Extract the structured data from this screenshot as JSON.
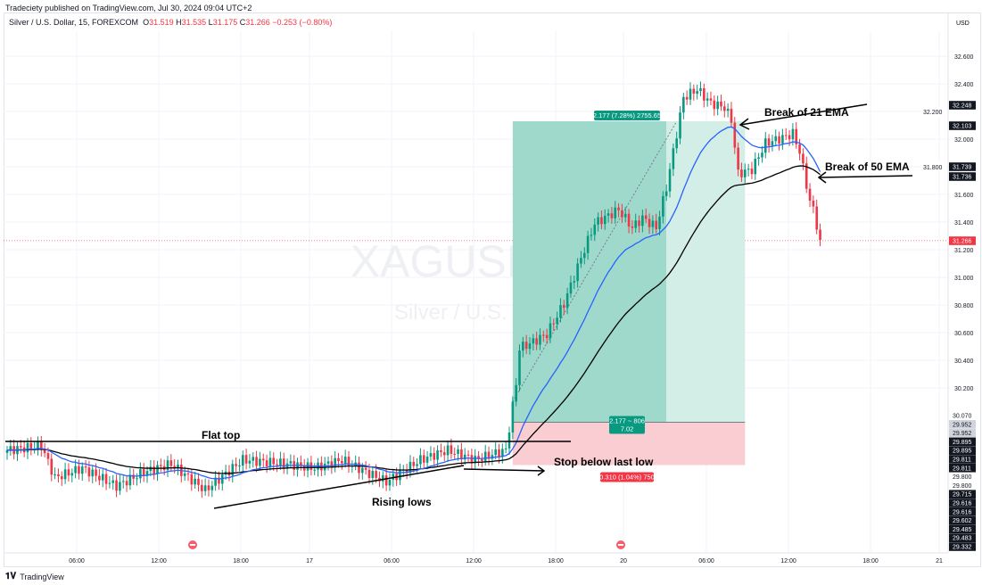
{
  "header": {
    "published": "Tradeciety published on TradingView.com, Jul 30, 2024 09:04 UTC+2",
    "symbol": "Silver / U.S. Dollar, 15, FOREXCOM",
    "open_label": "O",
    "open": "31.519",
    "high_label": "H",
    "high": "31.535",
    "low_label": "L",
    "low": "31.175",
    "close_label": "C",
    "close": "31.266",
    "change": "−0.253 (−0.80%)"
  },
  "watermark": {
    "ticker": "XAGUSD, 15",
    "name": "Silver / U.S. Dollar"
  },
  "footer": {
    "brand": "TradingView"
  },
  "colors": {
    "up": "#089981",
    "down": "#f23645",
    "ema21": "#2962ff",
    "ema50": "#000000",
    "target_zone": "#8fd3c3",
    "stop_zone": "#f9cdd1"
  },
  "chart_data": {
    "type": "candlestick",
    "currency": "USD",
    "y_ticks": [
      "32.600",
      "32.400",
      "32.200",
      "32.000",
      "31.800",
      "31.600",
      "31.400",
      "31.200",
      "31.000",
      "30.800",
      "30.600",
      "30.400",
      "30.200"
    ],
    "x_ticks": [
      "06:00",
      "12:00",
      "18:00",
      "17",
      "06:00",
      "12:00",
      "18:00",
      "20",
      "06:00",
      "12:00",
      "18:00",
      "21"
    ],
    "close_keyframes": [
      [
        0,
        29.75
      ],
      [
        10,
        29.78
      ],
      [
        14,
        29.55
      ],
      [
        22,
        29.62
      ],
      [
        32,
        29.49
      ],
      [
        40,
        29.59
      ],
      [
        48,
        29.65
      ],
      [
        58,
        29.46
      ],
      [
        69,
        29.68
      ],
      [
        82,
        29.65
      ],
      [
        90,
        29.62
      ],
      [
        98,
        29.68
      ],
      [
        111,
        29.52
      ],
      [
        121,
        29.68
      ],
      [
        129,
        29.75
      ],
      [
        137,
        29.68
      ],
      [
        146,
        29.75
      ],
      [
        149,
        30.23
      ],
      [
        150,
        30.49
      ],
      [
        153,
        30.52
      ],
      [
        158,
        30.59
      ],
      [
        163,
        30.81
      ],
      [
        168,
        31.14
      ],
      [
        172,
        31.39
      ],
      [
        179,
        31.49
      ],
      [
        183,
        31.36
      ],
      [
        186,
        31.43
      ],
      [
        190,
        31.36
      ],
      [
        193,
        31.65
      ],
      [
        196,
        32.04
      ],
      [
        198,
        32.3
      ],
      [
        202,
        32.36
      ],
      [
        206,
        32.26
      ],
      [
        210,
        32.23
      ],
      [
        212,
        32.14
      ],
      [
        214,
        31.75
      ],
      [
        218,
        31.78
      ],
      [
        222,
        31.97
      ],
      [
        227,
        32.01
      ],
      [
        230,
        32.04
      ],
      [
        232,
        31.91
      ],
      [
        235,
        31.55
      ],
      [
        236,
        31.49
      ],
      [
        238,
        31.27
      ]
    ],
    "indicators": [
      "EMA 21",
      "EMA 50"
    ],
    "position": {
      "entry": 29.952,
      "target": 32.129,
      "stop": 29.642,
      "target_label": "2.177 (7.28%) 2755.65",
      "mid_label_1": "2.177 ~ 806",
      "mid_label_2": "7.02",
      "stop_label": "0.310 (1.04%) 750"
    },
    "price_tags": [
      {
        "text": "32.248",
        "style": "dark"
      },
      {
        "text": "32.103",
        "style": "dark"
      },
      {
        "text": "31.739",
        "style": "dark"
      },
      {
        "text": "31.736",
        "style": "dark"
      },
      {
        "text": "31.266",
        "style": "red"
      },
      {
        "text": "30.070",
        "style": "plain"
      },
      {
        "text": "29.952",
        "style": "light"
      },
      {
        "text": "29.952",
        "style": "light"
      },
      {
        "text": "29.895",
        "style": "dark"
      },
      {
        "text": "29.895",
        "style": "dark"
      },
      {
        "text": "29.811",
        "style": "dark"
      },
      {
        "text": "29.811",
        "style": "dark"
      },
      {
        "text": "29.800",
        "style": "plain"
      },
      {
        "text": "29.800",
        "style": "plain"
      },
      {
        "text": "29.715",
        "style": "dark"
      },
      {
        "text": "29.616",
        "style": "dark"
      },
      {
        "text": "29.616",
        "style": "dark"
      },
      {
        "text": "29.602",
        "style": "dark"
      },
      {
        "text": "29.485",
        "style": "dark"
      },
      {
        "text": "29.483",
        "style": "dark"
      },
      {
        "text": "29.332",
        "style": "dark"
      }
    ],
    "annotations": {
      "flat_top": "Flat top",
      "rising_lows": "Rising lows",
      "stop": "Stop below last low",
      "ema21": "Break of 21 EMA",
      "ema50": "Break of 50 EMA"
    }
  }
}
